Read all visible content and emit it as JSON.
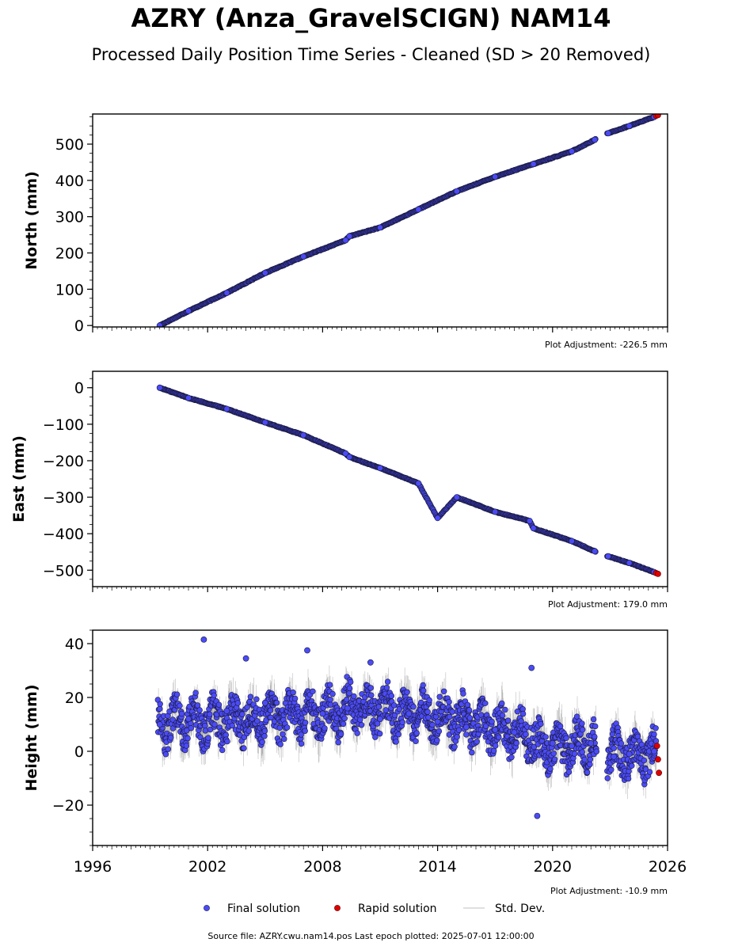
{
  "title": "AZRY (Anza_GravelSCIGN) NAM14",
  "subtitle": "Processed Daily Position Time Series - Cleaned (SD > 20 Removed)",
  "source_note": "Source file: AZRY.cwu.nam14.pos  Last epoch plotted: 2025-07-01 12:00:00",
  "colors": {
    "final": "#4b4bf5",
    "rapid": "#e00000",
    "std": "#808080",
    "edge": "#1a1a40"
  },
  "legend": {
    "final": "Final solution",
    "rapid": "Rapid solution",
    "std": "Std. Dev."
  },
  "chart_data": [
    {
      "type": "scatter",
      "ylabel": "North (mm)",
      "adjustment": "Plot Adjustment: -226.5 mm",
      "xlim": [
        1996,
        2026
      ],
      "ylim": [
        -4,
        583
      ],
      "yticks": [
        0,
        100,
        200,
        300,
        400,
        500
      ],
      "yticklabels": [
        "0",
        "100",
        "200",
        "300",
        "400",
        "500"
      ],
      "final": {
        "x": [
          1999.5,
          2001.0,
          2003.0,
          2005.0,
          2007.0,
          2009.2,
          2009.4,
          2011.0,
          2013.0,
          2015.0,
          2017.0,
          2019.0,
          2021.0,
          2022.2,
          2022.9,
          2024.0,
          2025.3
        ],
        "y": [
          0,
          40,
          90,
          145,
          190,
          235,
          246,
          270,
          320,
          370,
          410,
          445,
          480,
          512,
          530,
          550,
          575
        ]
      },
      "rapid": {
        "x": [
          2025.4,
          2025.5
        ],
        "y": [
          578,
          580
        ]
      }
    },
    {
      "type": "scatter",
      "ylabel": "East (mm)",
      "adjustment": "Plot Adjustment: 179.0 mm",
      "xlim": [
        1996,
        2026
      ],
      "ylim": [
        -545,
        45
      ],
      "yticks": [
        0,
        -100,
        -200,
        -300,
        -400,
        -500
      ],
      "yticklabels": [
        "0",
        "−100",
        "−200",
        "−300",
        "−400",
        "−500"
      ],
      "final": {
        "x": [
          1999.5,
          2001.0,
          2003.0,
          2005.0,
          2007.0,
          2009.2,
          2009.4,
          2011.0,
          2013.0,
          2014.0,
          2015.0,
          2017.0,
          2018.8,
          2019.0,
          2021.0,
          2022.2,
          2022.9,
          2024.0,
          2025.3
        ],
        "y": [
          0,
          -28,
          -58,
          -95,
          -130,
          -180,
          -190,
          -220,
          -262,
          -357,
          -300,
          -340,
          -365,
          -385,
          -420,
          -448,
          -462,
          -480,
          -505
        ]
      },
      "rapid": {
        "x": [
          2025.4,
          2025.5
        ],
        "y": [
          -508,
          -510
        ]
      }
    },
    {
      "type": "scatter",
      "ylabel": "Height (mm)",
      "adjustment": "Plot Adjustment: -10.9 mm",
      "xlim": [
        1996,
        2026
      ],
      "ylim": [
        -35,
        45
      ],
      "yticks": [
        40,
        20,
        0,
        -20
      ],
      "yticklabels": [
        "40",
        "20",
        "0",
        "−20"
      ],
      "xticks": [
        1996,
        2002,
        2008,
        2014,
        2020,
        2026
      ],
      "xticklabels": [
        "1996",
        "2002",
        "2008",
        "2014",
        "2020",
        "2026"
      ],
      "final": {
        "x": [
          1999.5,
          2001.0,
          2001.8,
          2003.0,
          2004.0,
          2005.0,
          2007.2,
          2008.0,
          2009.3,
          2010.5,
          2011.0,
          2012.5,
          2014.0,
          2015.5,
          2017.0,
          2018.0,
          2018.9,
          2019.2,
          2020.0,
          2021.0,
          2022.0,
          2023.2,
          2024.0,
          2025.3
        ],
        "y": [
          10,
          12,
          41.5,
          15,
          34.5,
          18,
          37.5,
          14,
          16,
          33,
          12,
          14,
          11,
          9,
          8,
          7,
          31,
          -24,
          3,
          2,
          3,
          -2,
          -1,
          0
        ]
      },
      "rapid": {
        "x": [
          2025.45,
          2025.5,
          2025.55
        ],
        "y": [
          2,
          -3,
          -8
        ]
      }
    }
  ]
}
